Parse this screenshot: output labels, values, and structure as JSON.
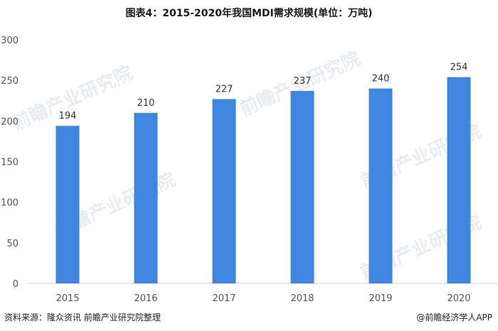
{
  "title": "图表4：2015-2020年我国MDI需求规模(单位：万吨)",
  "source": "资料来源：隆众资讯 前瞻产业研究院整理",
  "brand": "@前瞻经济学人APP",
  "watermark": "前瞻产业研究院",
  "colors": {
    "bar": "#3e86e0",
    "axis": "#cfcfcf",
    "text": "#333333"
  },
  "chart_data": {
    "type": "bar",
    "categories": [
      "2015",
      "2016",
      "2017",
      "2018",
      "2019",
      "2020"
    ],
    "values": [
      194,
      210,
      227,
      237,
      240,
      254
    ],
    "title": "图表4：2015-2020年我国MDI需求规模(单位：万吨)",
    "xlabel": "",
    "ylabel": "",
    "ylim": [
      0,
      300
    ],
    "yticks": [
      0,
      50,
      100,
      150,
      200,
      250,
      300
    ],
    "grid": false,
    "data_labels": true
  }
}
